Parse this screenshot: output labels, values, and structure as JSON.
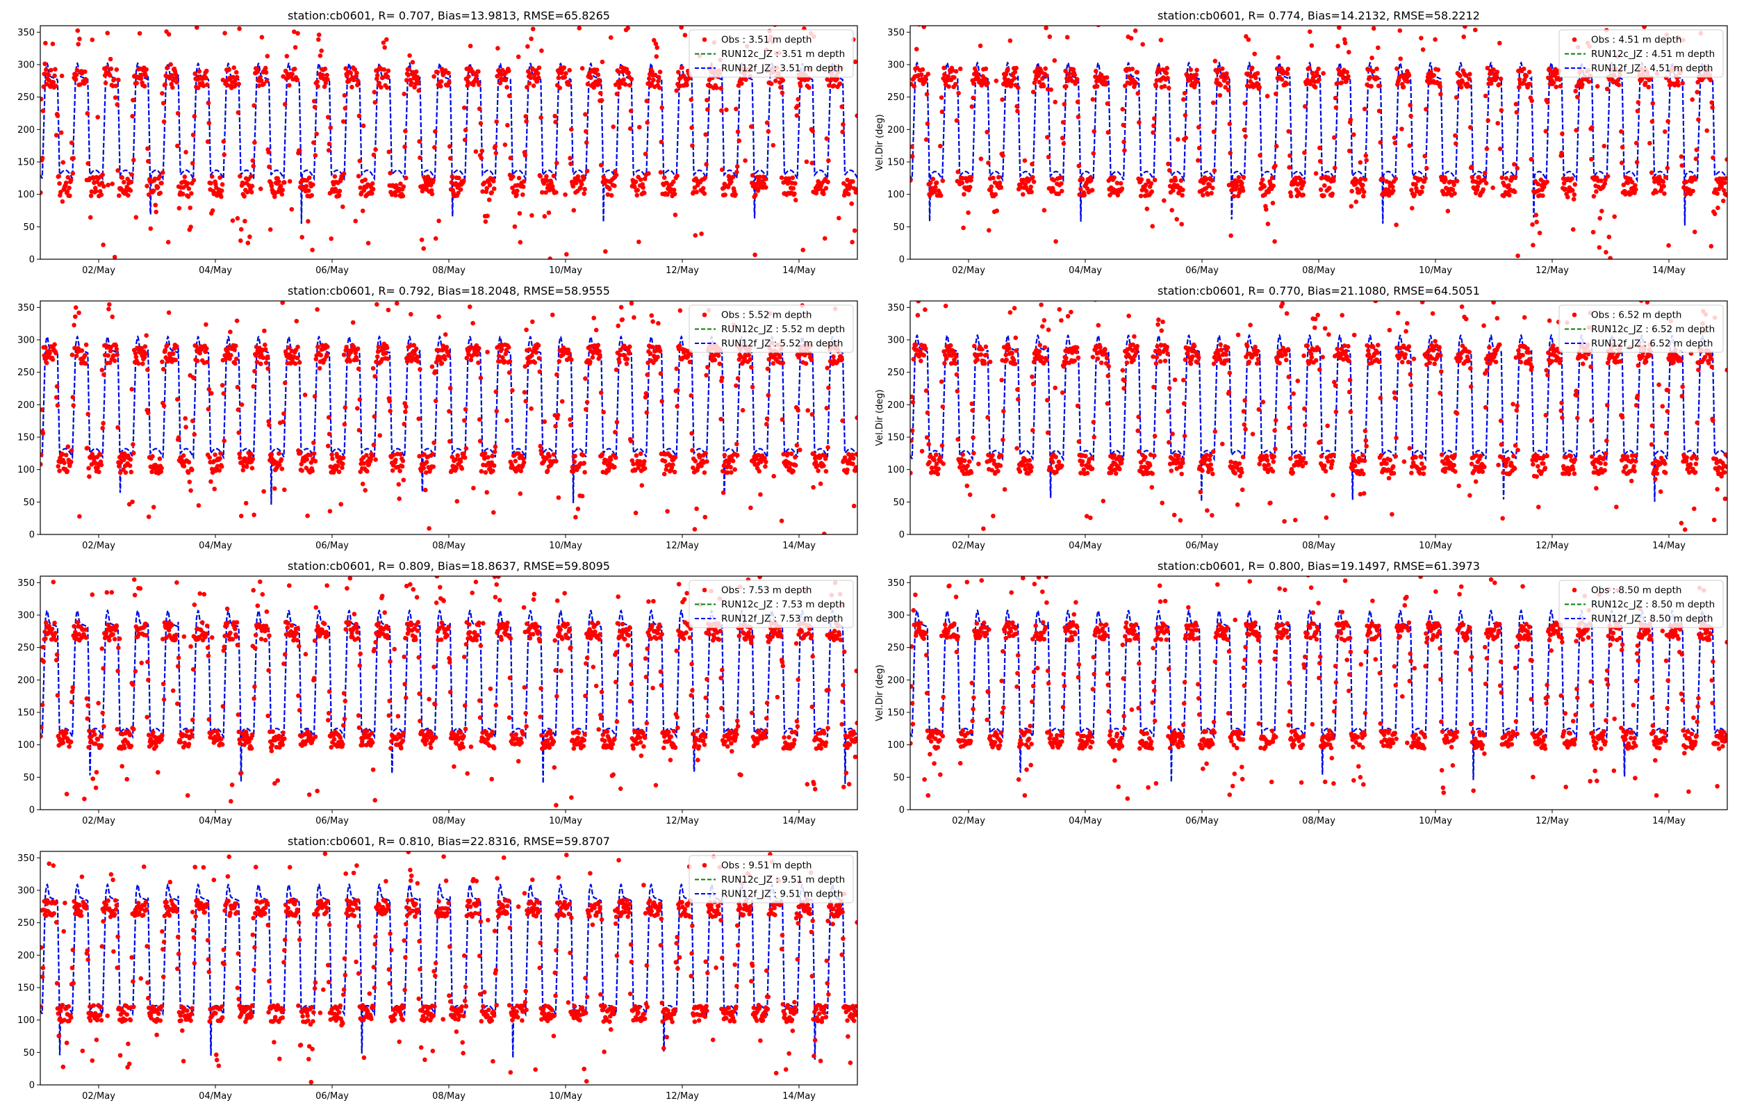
{
  "figure": {
    "background": "#ffffff"
  },
  "chart_data": [
    {
      "type": "scatter+line",
      "title": "station:cb0601, R= 0.707, Bias=13.9813, RMSE=65.8265",
      "ylabel": "",
      "depth": 3.51,
      "xlim_days": [
        1.0,
        15.0
      ],
      "ylim": [
        0,
        360
      ],
      "xticks": [
        "02/May",
        "04/May",
        "06/May",
        "08/May",
        "10/May",
        "12/May",
        "14/May"
      ],
      "yticks": [
        0,
        50,
        100,
        150,
        200,
        250,
        300,
        350
      ],
      "legend": {
        "position": "top-right",
        "entries": [
          "Obs : 3.51 m depth",
          "RUN12c_JZ : 3.51 m depth",
          "RUN12f_JZ : 3.51 m depth"
        ]
      },
      "series": [
        {
          "name": "Obs : 3.51 m depth",
          "kind": "scatter",
          "color": "#ff0000",
          "flood": 280,
          "ebb": 112,
          "spread": 16,
          "outliers": 0.2
        },
        {
          "name": "RUN12c_JZ : 3.51 m depth",
          "kind": "line",
          "style": "dashed",
          "color": "#008000",
          "flood": 285,
          "ebb": 130,
          "shift": 0.0
        },
        {
          "name": "RUN12f_JZ : 3.51 m depth",
          "kind": "line",
          "style": "dashed",
          "color": "#0000ff",
          "flood": 285,
          "ebb": 130,
          "shift": 0.0
        }
      ]
    },
    {
      "type": "scatter+line",
      "title": "station:cb0601, R= 0.774, Bias=14.2132, RMSE=58.2212",
      "ylabel": "Vel.Dir (deg)",
      "depth": 4.51,
      "xlim_days": [
        1.0,
        15.0
      ],
      "ylim": [
        0,
        360
      ],
      "xticks": [
        "02/May",
        "04/May",
        "06/May",
        "08/May",
        "10/May",
        "12/May",
        "14/May"
      ],
      "yticks": [
        0,
        50,
        100,
        150,
        200,
        250,
        300,
        350
      ],
      "legend": {
        "position": "top-right",
        "entries": [
          "Obs : 4.51 m depth",
          "RUN12c_JZ : 4.51 m depth",
          "RUN12f_JZ : 4.51 m depth"
        ]
      },
      "series": [
        {
          "name": "Obs : 4.51 m depth",
          "kind": "scatter",
          "color": "#ff0000",
          "flood": 280,
          "ebb": 112,
          "spread": 15,
          "outliers": 0.17
        },
        {
          "name": "RUN12c_JZ : 4.51 m depth",
          "kind": "line",
          "style": "dashed",
          "color": "#008000",
          "flood": 286,
          "ebb": 128,
          "shift": 0.0
        },
        {
          "name": "RUN12f_JZ : 4.51 m depth",
          "kind": "line",
          "style": "dashed",
          "color": "#0000ff",
          "flood": 286,
          "ebb": 128,
          "shift": 0.0
        }
      ]
    },
    {
      "type": "scatter+line",
      "title": "station:cb0601, R= 0.792, Bias=18.2048, RMSE=58.9555",
      "ylabel": "",
      "depth": 5.52,
      "xlim_days": [
        1.0,
        15.0
      ],
      "ylim": [
        0,
        360
      ],
      "xticks": [
        "02/May",
        "04/May",
        "06/May",
        "08/May",
        "10/May",
        "12/May",
        "14/May"
      ],
      "yticks": [
        0,
        50,
        100,
        150,
        200,
        250,
        300,
        350
      ],
      "legend": {
        "position": "top-right",
        "entries": [
          "Obs : 5.52 m depth",
          "RUN12c_JZ : 5.52 m depth",
          "RUN12f_JZ : 5.52 m depth"
        ]
      },
      "series": [
        {
          "name": "Obs : 5.52 m depth",
          "kind": "scatter",
          "color": "#ff0000",
          "flood": 278,
          "ebb": 110,
          "spread": 15,
          "outliers": 0.15
        },
        {
          "name": "RUN12c_JZ : 5.52 m depth",
          "kind": "line",
          "style": "dashed",
          "color": "#008000",
          "flood": 288,
          "ebb": 125,
          "shift": 0.0
        },
        {
          "name": "RUN12f_JZ : 5.52 m depth",
          "kind": "line",
          "style": "dashed",
          "color": "#0000ff",
          "flood": 288,
          "ebb": 125,
          "shift": 0.0
        }
      ]
    },
    {
      "type": "scatter+line",
      "title": "station:cb0601, R= 0.770, Bias=21.1080, RMSE=64.5051",
      "ylabel": "Vel.Dir (deg)",
      "depth": 6.52,
      "xlim_days": [
        1.0,
        15.0
      ],
      "ylim": [
        0,
        360
      ],
      "xticks": [
        "02/May",
        "04/May",
        "06/May",
        "08/May",
        "10/May",
        "12/May",
        "14/May"
      ],
      "yticks": [
        0,
        50,
        100,
        150,
        200,
        250,
        300,
        350
      ],
      "legend": {
        "position": "top-right",
        "entries": [
          "Obs : 6.52 m depth",
          "RUN12c_JZ : 6.52 m depth",
          "RUN12f_JZ : 6.52 m depth"
        ]
      },
      "series": [
        {
          "name": "Obs : 6.52 m depth",
          "kind": "scatter",
          "color": "#ff0000",
          "flood": 278,
          "ebb": 108,
          "spread": 15,
          "outliers": 0.14
        },
        {
          "name": "RUN12c_JZ : 6.52 m depth",
          "kind": "line",
          "style": "dashed",
          "color": "#008000",
          "flood": 290,
          "ebb": 122,
          "shift": 0.0
        },
        {
          "name": "RUN12f_JZ : 6.52 m depth",
          "kind": "line",
          "style": "dashed",
          "color": "#0000ff",
          "flood": 290,
          "ebb": 122,
          "shift": 0.0
        }
      ]
    },
    {
      "type": "scatter+line",
      "title": "station:cb0601, R= 0.809, Bias=18.8637, RMSE=59.8095",
      "ylabel": "",
      "depth": 7.53,
      "xlim_days": [
        1.0,
        15.0
      ],
      "ylim": [
        0,
        360
      ],
      "xticks": [
        "02/May",
        "04/May",
        "06/May",
        "08/May",
        "10/May",
        "12/May",
        "14/May"
      ],
      "yticks": [
        0,
        50,
        100,
        150,
        200,
        250,
        300,
        350
      ],
      "legend": {
        "position": "top-right",
        "entries": [
          "Obs : 7.53 m depth",
          "RUN12c_JZ : 7.53 m depth",
          "RUN12f_JZ : 7.53 m depth"
        ]
      },
      "series": [
        {
          "name": "Obs : 7.53 m depth",
          "kind": "scatter",
          "color": "#ff0000",
          "flood": 275,
          "ebb": 108,
          "spread": 14,
          "outliers": 0.12
        },
        {
          "name": "RUN12c_JZ : 7.53 m depth",
          "kind": "line",
          "style": "dashed",
          "color": "#008000",
          "flood": 290,
          "ebb": 118,
          "shift": 0.0
        },
        {
          "name": "RUN12f_JZ : 7.53 m depth",
          "kind": "line",
          "style": "dashed",
          "color": "#0000ff",
          "flood": 290,
          "ebb": 118,
          "shift": 0.0
        }
      ]
    },
    {
      "type": "scatter+line",
      "title": "station:cb0601, R= 0.800, Bias=19.1497, RMSE=61.3973",
      "ylabel": "Vel.Dir (deg)",
      "depth": 8.5,
      "xlim_days": [
        1.0,
        15.0
      ],
      "ylim": [
        0,
        360
      ],
      "xticks": [
        "02/May",
        "04/May",
        "06/May",
        "08/May",
        "10/May",
        "12/May",
        "14/May"
      ],
      "yticks": [
        0,
        50,
        100,
        150,
        200,
        250,
        300,
        350
      ],
      "legend": {
        "position": "top-right",
        "entries": [
          "Obs : 8.50 m depth",
          "RUN12c_JZ : 8.50 m depth",
          "RUN12f_JZ : 8.50 m depth"
        ]
      },
      "series": [
        {
          "name": "Obs : 8.50 m depth",
          "kind": "scatter",
          "color": "#ff0000",
          "flood": 275,
          "ebb": 108,
          "spread": 14,
          "outliers": 0.12
        },
        {
          "name": "RUN12c_JZ : 8.50 m depth",
          "kind": "line",
          "style": "dashed",
          "color": "#008000",
          "flood": 290,
          "ebb": 118,
          "shift": 0.0
        },
        {
          "name": "RUN12f_JZ : 8.50 m depth",
          "kind": "line",
          "style": "dashed",
          "color": "#0000ff",
          "flood": 290,
          "ebb": 118,
          "shift": 0.0
        }
      ]
    },
    {
      "type": "scatter+line",
      "title": "station:cb0601, R= 0.810, Bias=22.8316, RMSE=59.8707",
      "ylabel": "",
      "depth": 9.51,
      "xlim_days": [
        1.0,
        15.0
      ],
      "ylim": [
        0,
        360
      ],
      "xticks": [
        "02/May",
        "04/May",
        "06/May",
        "08/May",
        "10/May",
        "12/May",
        "14/May"
      ],
      "yticks": [
        0,
        50,
        100,
        150,
        200,
        250,
        300,
        350
      ],
      "legend": {
        "position": "top-right",
        "entries": [
          "Obs : 9.51 m depth",
          "RUN12c_JZ : 9.51 m depth",
          "RUN12f_JZ : 9.51 m depth"
        ]
      },
      "series": [
        {
          "name": "Obs : 9.51 m depth",
          "kind": "scatter",
          "color": "#ff0000",
          "flood": 272,
          "ebb": 110,
          "spread": 13,
          "outliers": 0.1
        },
        {
          "name": "RUN12c_JZ : 9.51 m depth",
          "kind": "line",
          "style": "dashed",
          "color": "#008000",
          "flood": 292,
          "ebb": 115,
          "shift": 0.0
        },
        {
          "name": "RUN12f_JZ : 9.51 m depth",
          "kind": "line",
          "style": "dashed",
          "color": "#0000ff",
          "flood": 292,
          "ebb": 115,
          "shift": 0.0
        }
      ]
    }
  ]
}
